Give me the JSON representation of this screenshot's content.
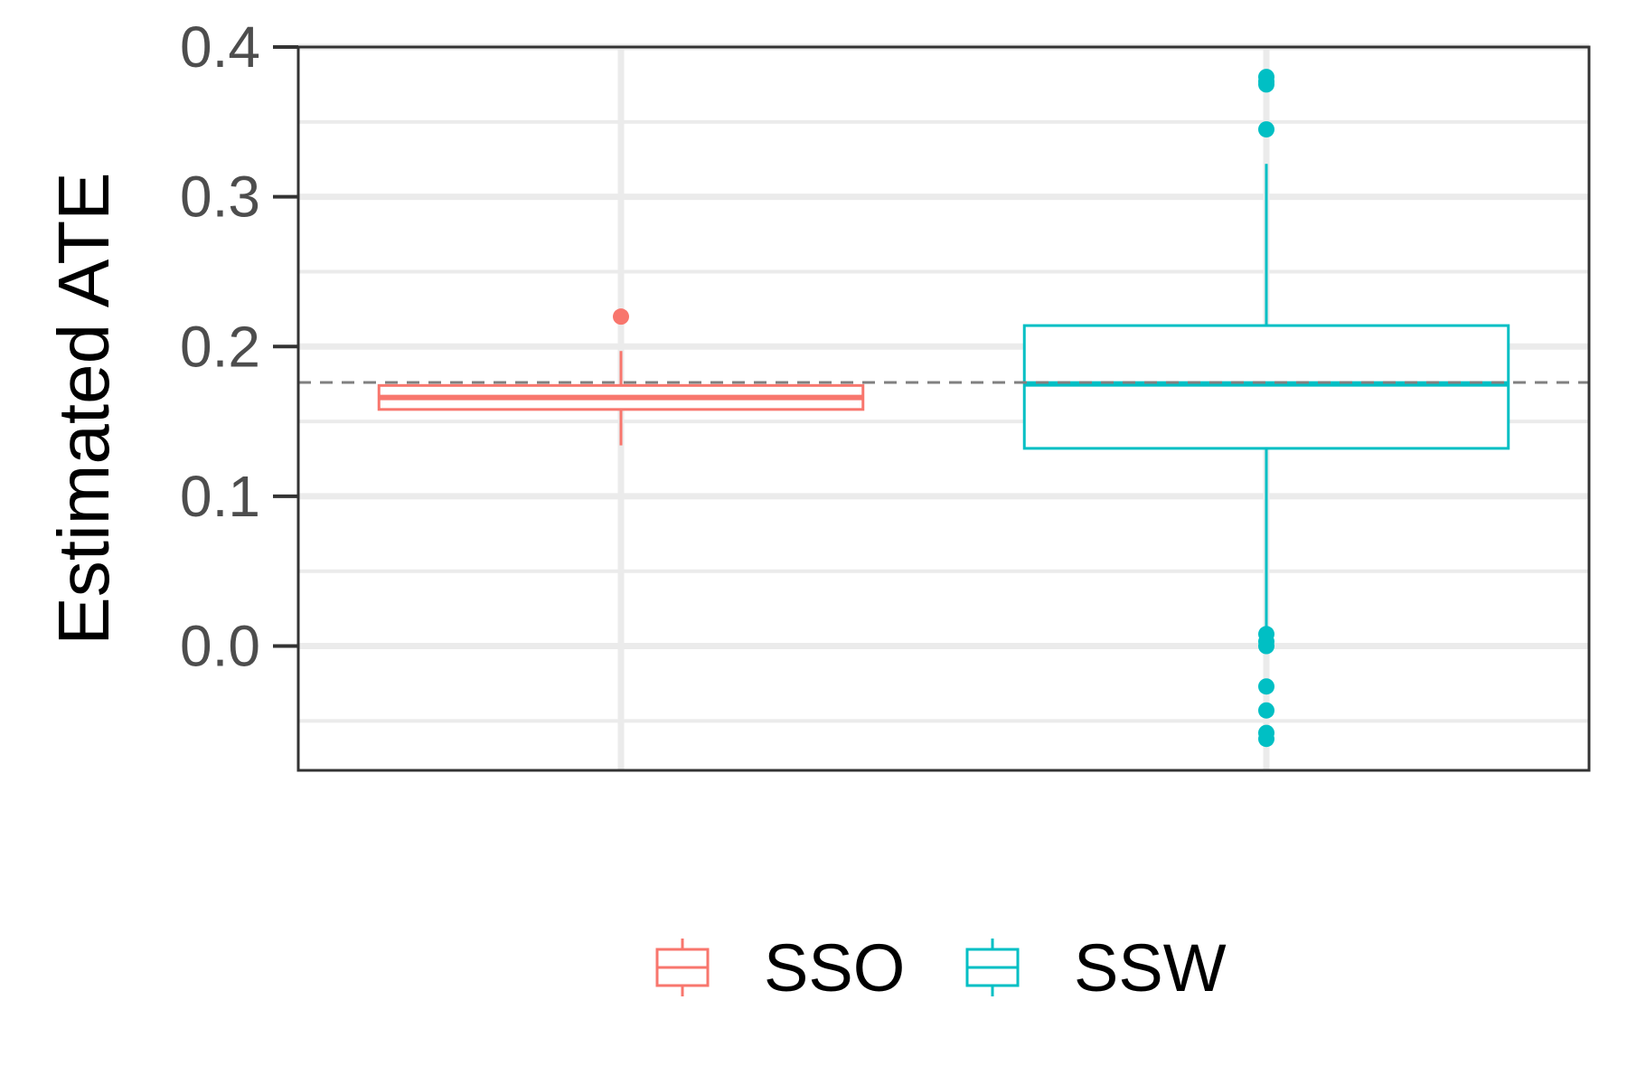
{
  "chart_data": {
    "type": "boxplot",
    "title": "",
    "xlabel": "",
    "ylabel": "Estimated ATE",
    "ylim": [
      -0.083,
      0.4
    ],
    "yticks": [
      0.0,
      0.1,
      0.2,
      0.3,
      0.4
    ],
    "ytick_labels": [
      "0.0",
      "0.1",
      "0.2",
      "0.3",
      "0.4"
    ],
    "grid": true,
    "legend_position": "bottom",
    "reference_line": {
      "y": 0.176,
      "style": "dashed",
      "color": "#808080"
    },
    "series": [
      {
        "name": "SSO",
        "color": "#F8766D",
        "whisker_low": 0.134,
        "q1": 0.158,
        "median": 0.166,
        "q3": 0.174,
        "whisker_high": 0.197,
        "outliers": [
          0.22
        ]
      },
      {
        "name": "SSW",
        "color": "#00BFC4",
        "whisker_low": 0.0,
        "q1": 0.132,
        "median": 0.175,
        "q3": 0.214,
        "whisker_high": 0.322,
        "outliers": [
          0.38,
          0.377,
          0.375,
          0.345,
          0.008,
          0.003,
          0.0,
          -0.027,
          -0.043,
          -0.058,
          -0.062
        ]
      }
    ]
  }
}
